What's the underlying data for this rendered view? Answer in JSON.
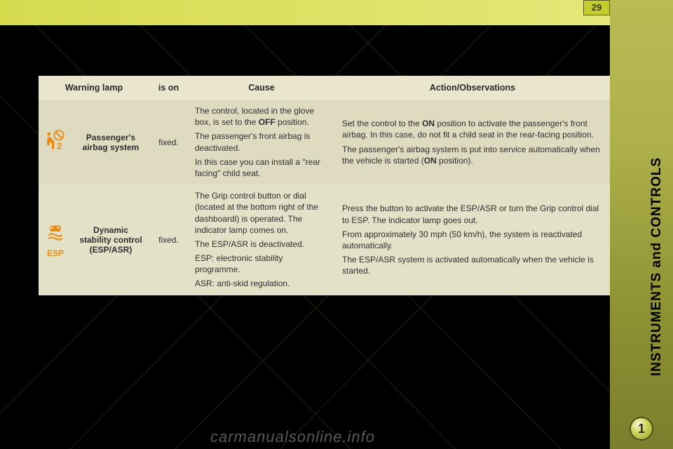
{
  "page": {
    "number": "29",
    "chapter": "1",
    "side_title": "INSTRUMENTS and CONTROLS",
    "watermark": "carmanualsonline.info"
  },
  "colors": {
    "icon": "#e88b14",
    "row_alt_a": "#dedbc1",
    "row_alt_b": "#e3e1c8",
    "header_bg": "#e9e6cd"
  },
  "table": {
    "headers": {
      "lamp": "Warning lamp",
      "ison": "is on",
      "cause": "Cause",
      "action": "Action/Observations"
    },
    "rows": [
      {
        "label": "Passenger's airbag system",
        "ison": "fixed.",
        "cause_html": "The control, located in the glove box, is set to the <b class='inline'>OFF</b> position.<br>The passenger's front airbag is deactivated.<br>In this case you can install a \"rear facing\" child seat.",
        "action_html": "Set the control to the <b class='inline'>ON</b> position to activate the passenger's front airbag. In this case, do not fit a child seat in the rear-facing position.<br>The passenger's airbag system is put into service automatically when the vehicle is started (<b class='inline'>ON</b> position)."
      },
      {
        "label": "Dynamic stability control (ESP/ASR)",
        "ison": "fixed.",
        "cause_html": "The Grip control button or dial (located at the bottom right of the dashboardl) is operated. The indicator lamp comes on.<br>The ESP/ASR is deactivated.<br>ESP: electronic stability programme.<br>ASR: anti-skid regulation.",
        "action_html": "Press the button to activate the ESP/ASR or turn the Grip control dial to ESP. The indicator lamp goes out.<br>From approximately 30 mph (50 km/h), the system is reactivated automatically.<br>The ESP/ASR system is activated automatically when the vehicle is started."
      }
    ]
  }
}
